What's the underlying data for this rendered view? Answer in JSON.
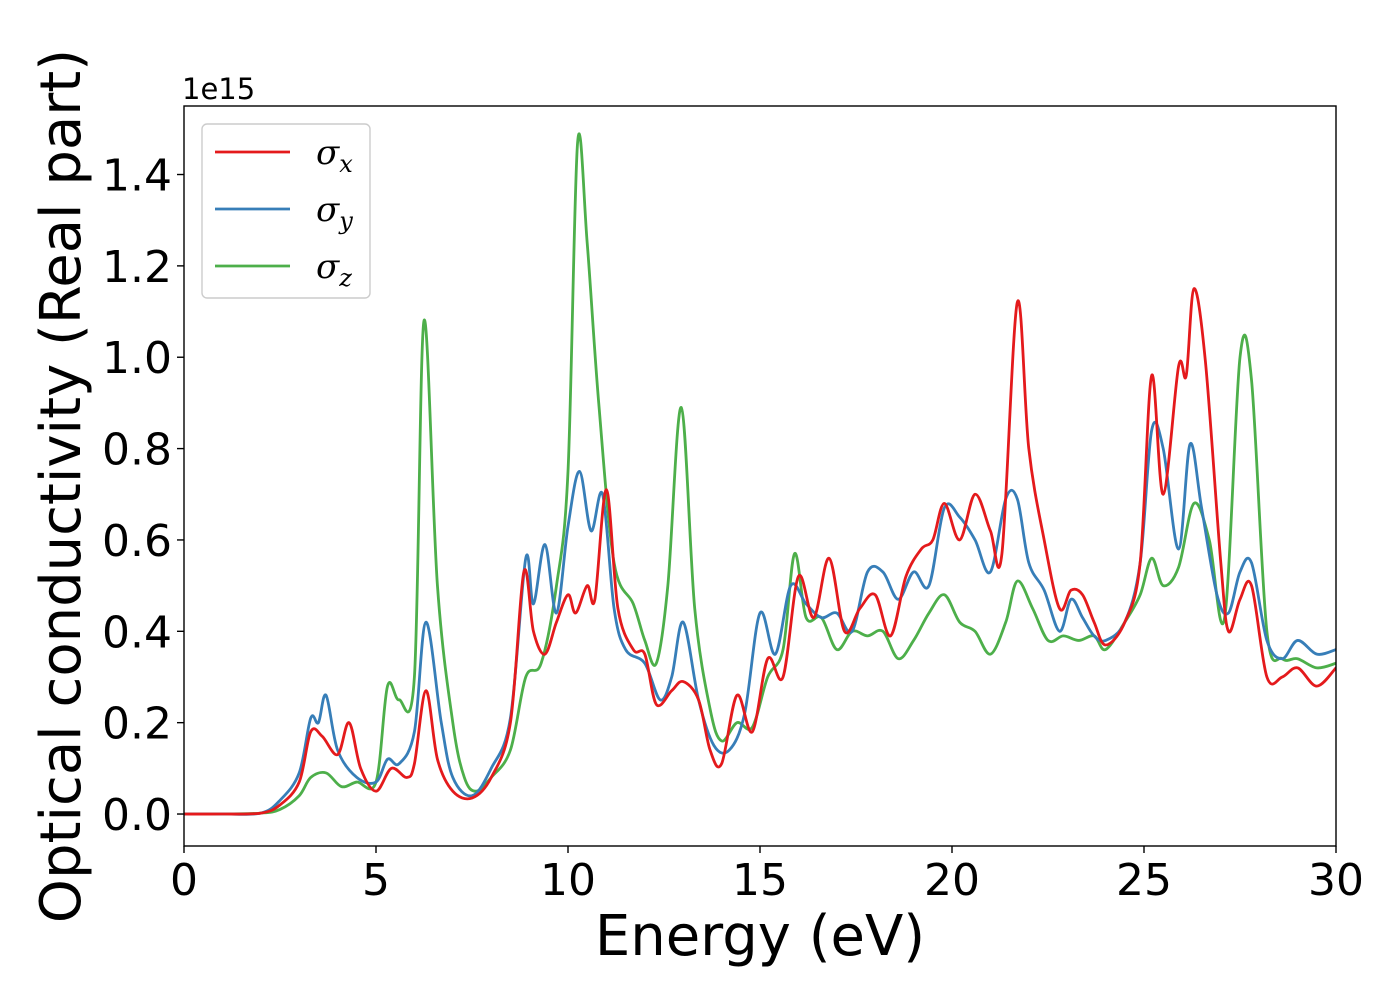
{
  "chart_data": {
    "type": "line",
    "xlabel": "Energy (eV)",
    "ylabel": "Optical conductivity (Real part)",
    "y_offset_label": "1e15",
    "xlim": [
      0,
      30
    ],
    "ylim": [
      -0.07,
      1.55
    ],
    "xticks": [
      0,
      5,
      10,
      15,
      20,
      25,
      30
    ],
    "xtick_labels": [
      "0",
      "5",
      "10",
      "15",
      "20",
      "25",
      "30"
    ],
    "yticks": [
      0.0,
      0.2,
      0.4,
      0.6,
      0.8,
      1.0,
      1.2,
      1.4
    ],
    "ytick_labels": [
      "0.0",
      "0.2",
      "0.4",
      "0.6",
      "0.8",
      "1.0",
      "1.2",
      "1.4"
    ],
    "grid": false,
    "legend_position": "top-left",
    "series": [
      {
        "name": "σx",
        "symbol": "σ",
        "subscript": "x",
        "color": "#e41a1c",
        "points": [
          [
            0,
            0
          ],
          [
            1,
            0
          ],
          [
            2,
            0.002
          ],
          [
            2.5,
            0.02
          ],
          [
            3,
            0.07
          ],
          [
            3.3,
            0.18
          ],
          [
            3.6,
            0.17
          ],
          [
            4,
            0.13
          ],
          [
            4.3,
            0.2
          ],
          [
            4.6,
            0.1
          ],
          [
            5,
            0.05
          ],
          [
            5.4,
            0.1
          ],
          [
            5.8,
            0.08
          ],
          [
            6.0,
            0.11
          ],
          [
            6.3,
            0.27
          ],
          [
            6.6,
            0.12
          ],
          [
            7.0,
            0.05
          ],
          [
            7.5,
            0.035
          ],
          [
            8.0,
            0.08
          ],
          [
            8.5,
            0.2
          ],
          [
            8.85,
            0.53
          ],
          [
            9.1,
            0.4
          ],
          [
            9.4,
            0.35
          ],
          [
            9.7,
            0.42
          ],
          [
            10.0,
            0.48
          ],
          [
            10.2,
            0.44
          ],
          [
            10.5,
            0.5
          ],
          [
            10.7,
            0.47
          ],
          [
            11.0,
            0.71
          ],
          [
            11.3,
            0.45
          ],
          [
            11.7,
            0.36
          ],
          [
            12.0,
            0.35
          ],
          [
            12.3,
            0.24
          ],
          [
            12.7,
            0.27
          ],
          [
            13.0,
            0.29
          ],
          [
            13.4,
            0.25
          ],
          [
            13.7,
            0.14
          ],
          [
            14.0,
            0.11
          ],
          [
            14.4,
            0.26
          ],
          [
            14.8,
            0.18
          ],
          [
            15.2,
            0.34
          ],
          [
            15.6,
            0.3
          ],
          [
            16.0,
            0.52
          ],
          [
            16.4,
            0.43
          ],
          [
            16.8,
            0.56
          ],
          [
            17.2,
            0.4
          ],
          [
            17.6,
            0.45
          ],
          [
            18.0,
            0.48
          ],
          [
            18.4,
            0.39
          ],
          [
            18.8,
            0.52
          ],
          [
            19.2,
            0.58
          ],
          [
            19.5,
            0.6
          ],
          [
            19.8,
            0.68
          ],
          [
            20.2,
            0.6
          ],
          [
            20.6,
            0.7
          ],
          [
            21.0,
            0.62
          ],
          [
            21.3,
            0.57
          ],
          [
            21.7,
            1.12
          ],
          [
            22.0,
            0.8
          ],
          [
            22.4,
            0.6
          ],
          [
            22.8,
            0.45
          ],
          [
            23.1,
            0.49
          ],
          [
            23.4,
            0.48
          ],
          [
            23.7,
            0.42
          ],
          [
            24.0,
            0.37
          ],
          [
            24.5,
            0.42
          ],
          [
            24.9,
            0.55
          ],
          [
            25.2,
            0.96
          ],
          [
            25.5,
            0.7
          ],
          [
            25.9,
            0.98
          ],
          [
            26.1,
            0.96
          ],
          [
            26.3,
            1.15
          ],
          [
            26.6,
            0.99
          ],
          [
            27.0,
            0.55
          ],
          [
            27.2,
            0.4
          ],
          [
            27.5,
            0.47
          ],
          [
            27.8,
            0.5
          ],
          [
            28.2,
            0.3
          ],
          [
            28.6,
            0.3
          ],
          [
            29.0,
            0.32
          ],
          [
            29.5,
            0.28
          ],
          [
            30.0,
            0.32
          ]
        ]
      },
      {
        "name": "σy",
        "symbol": "σ",
        "subscript": "y",
        "color": "#377eb8",
        "points": [
          [
            0,
            0
          ],
          [
            1,
            0
          ],
          [
            2,
            0.002
          ],
          [
            2.5,
            0.03
          ],
          [
            3,
            0.09
          ],
          [
            3.3,
            0.21
          ],
          [
            3.5,
            0.2
          ],
          [
            3.7,
            0.26
          ],
          [
            4,
            0.14
          ],
          [
            4.5,
            0.08
          ],
          [
            5,
            0.07
          ],
          [
            5.3,
            0.12
          ],
          [
            5.6,
            0.11
          ],
          [
            6.0,
            0.18
          ],
          [
            6.3,
            0.42
          ],
          [
            6.7,
            0.2
          ],
          [
            7.0,
            0.08
          ],
          [
            7.5,
            0.04
          ],
          [
            8.0,
            0.1
          ],
          [
            8.5,
            0.21
          ],
          [
            8.9,
            0.56
          ],
          [
            9.1,
            0.46
          ],
          [
            9.4,
            0.59
          ],
          [
            9.7,
            0.44
          ],
          [
            10.0,
            0.63
          ],
          [
            10.3,
            0.75
          ],
          [
            10.6,
            0.62
          ],
          [
            10.9,
            0.7
          ],
          [
            11.2,
            0.45
          ],
          [
            11.5,
            0.36
          ],
          [
            12.0,
            0.33
          ],
          [
            12.4,
            0.25
          ],
          [
            12.7,
            0.3
          ],
          [
            13.0,
            0.42
          ],
          [
            13.4,
            0.25
          ],
          [
            13.8,
            0.15
          ],
          [
            14.2,
            0.14
          ],
          [
            14.6,
            0.22
          ],
          [
            15.0,
            0.44
          ],
          [
            15.4,
            0.35
          ],
          [
            15.8,
            0.5
          ],
          [
            16.2,
            0.46
          ],
          [
            16.6,
            0.43
          ],
          [
            17.0,
            0.44
          ],
          [
            17.4,
            0.4
          ],
          [
            17.8,
            0.53
          ],
          [
            18.2,
            0.53
          ],
          [
            18.6,
            0.47
          ],
          [
            19.0,
            0.53
          ],
          [
            19.4,
            0.5
          ],
          [
            19.8,
            0.67
          ],
          [
            20.2,
            0.65
          ],
          [
            20.6,
            0.6
          ],
          [
            21.0,
            0.53
          ],
          [
            21.4,
            0.69
          ],
          [
            21.7,
            0.69
          ],
          [
            22.0,
            0.55
          ],
          [
            22.4,
            0.49
          ],
          [
            22.8,
            0.4
          ],
          [
            23.1,
            0.47
          ],
          [
            23.4,
            0.43
          ],
          [
            23.7,
            0.39
          ],
          [
            24.0,
            0.38
          ],
          [
            24.5,
            0.42
          ],
          [
            24.9,
            0.55
          ],
          [
            25.2,
            0.84
          ],
          [
            25.5,
            0.8
          ],
          [
            25.9,
            0.58
          ],
          [
            26.2,
            0.81
          ],
          [
            26.5,
            0.67
          ],
          [
            26.9,
            0.48
          ],
          [
            27.2,
            0.44
          ],
          [
            27.5,
            0.53
          ],
          [
            27.8,
            0.55
          ],
          [
            28.2,
            0.38
          ],
          [
            28.6,
            0.34
          ],
          [
            29.0,
            0.38
          ],
          [
            29.5,
            0.35
          ],
          [
            30.0,
            0.36
          ]
        ]
      },
      {
        "name": "σz",
        "symbol": "σ",
        "subscript": "z",
        "color": "#4daf4a",
        "points": [
          [
            0,
            0
          ],
          [
            1,
            0
          ],
          [
            2,
            0.002
          ],
          [
            2.5,
            0.01
          ],
          [
            3,
            0.04
          ],
          [
            3.3,
            0.08
          ],
          [
            3.7,
            0.09
          ],
          [
            4.1,
            0.06
          ],
          [
            4.5,
            0.07
          ],
          [
            5.0,
            0.07
          ],
          [
            5.3,
            0.28
          ],
          [
            5.6,
            0.25
          ],
          [
            6.0,
            0.3
          ],
          [
            6.25,
            1.08
          ],
          [
            6.6,
            0.5
          ],
          [
            7.0,
            0.2
          ],
          [
            7.3,
            0.08
          ],
          [
            7.6,
            0.05
          ],
          [
            8.0,
            0.08
          ],
          [
            8.5,
            0.14
          ],
          [
            8.9,
            0.3
          ],
          [
            9.3,
            0.33
          ],
          [
            9.7,
            0.5
          ],
          [
            10.0,
            0.75
          ],
          [
            10.25,
            1.47
          ],
          [
            10.5,
            1.25
          ],
          [
            10.8,
            0.9
          ],
          [
            11.2,
            0.55
          ],
          [
            11.7,
            0.46
          ],
          [
            12.0,
            0.38
          ],
          [
            12.3,
            0.33
          ],
          [
            12.6,
            0.5
          ],
          [
            12.95,
            0.89
          ],
          [
            13.3,
            0.45
          ],
          [
            13.7,
            0.23
          ],
          [
            14.0,
            0.16
          ],
          [
            14.4,
            0.2
          ],
          [
            14.8,
            0.19
          ],
          [
            15.2,
            0.3
          ],
          [
            15.6,
            0.36
          ],
          [
            15.9,
            0.57
          ],
          [
            16.2,
            0.43
          ],
          [
            16.6,
            0.43
          ],
          [
            17.0,
            0.36
          ],
          [
            17.4,
            0.4
          ],
          [
            17.8,
            0.39
          ],
          [
            18.2,
            0.4
          ],
          [
            18.6,
            0.34
          ],
          [
            19.0,
            0.38
          ],
          [
            19.4,
            0.44
          ],
          [
            19.8,
            0.48
          ],
          [
            20.2,
            0.42
          ],
          [
            20.6,
            0.4
          ],
          [
            21.0,
            0.35
          ],
          [
            21.4,
            0.42
          ],
          [
            21.7,
            0.51
          ],
          [
            22.1,
            0.45
          ],
          [
            22.5,
            0.38
          ],
          [
            22.9,
            0.39
          ],
          [
            23.3,
            0.38
          ],
          [
            23.7,
            0.39
          ],
          [
            24.0,
            0.36
          ],
          [
            24.5,
            0.42
          ],
          [
            24.9,
            0.48
          ],
          [
            25.2,
            0.56
          ],
          [
            25.5,
            0.5
          ],
          [
            25.9,
            0.54
          ],
          [
            26.3,
            0.68
          ],
          [
            26.7,
            0.6
          ],
          [
            27.1,
            0.43
          ],
          [
            27.5,
            1.0
          ],
          [
            27.8,
            0.95
          ],
          [
            28.2,
            0.4
          ],
          [
            28.6,
            0.34
          ],
          [
            29.0,
            0.34
          ],
          [
            29.5,
            0.32
          ],
          [
            30.0,
            0.33
          ]
        ]
      }
    ]
  }
}
